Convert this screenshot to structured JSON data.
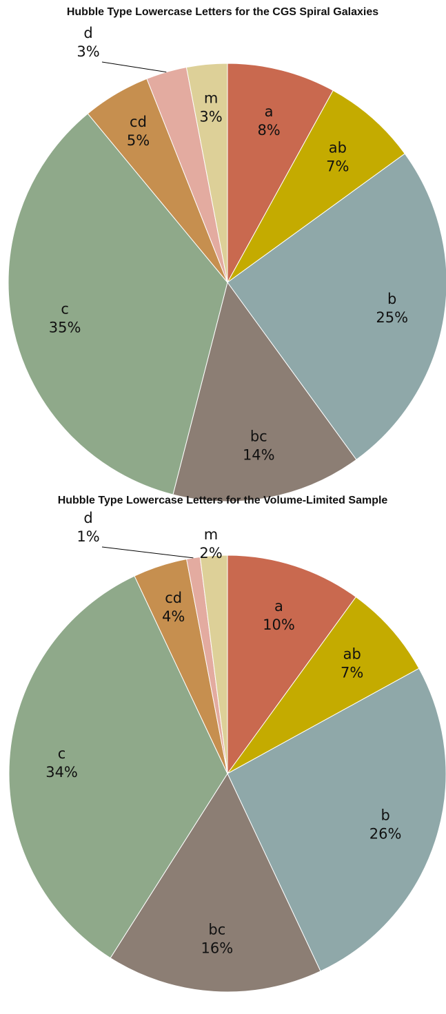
{
  "chart_data": [
    {
      "type": "pie",
      "title": "Hubble Type Lowercase Letters for the CGS Spiral Galaxies",
      "categories": [
        "a",
        "ab",
        "b",
        "bc",
        "c",
        "cd",
        "d",
        "m"
      ],
      "values": [
        8,
        7,
        25,
        14,
        35,
        5,
        3,
        3
      ],
      "value_labels": [
        "8%",
        "7%",
        "25%",
        "14%",
        "35%",
        "5%",
        "3%",
        "3%"
      ],
      "colors": [
        "#c9694f",
        "#c4ab00",
        "#8fa8a9",
        "#8c7e74",
        "#8fa98a",
        "#c68f4f",
        "#e3aba0",
        "#ddd098"
      ]
    },
    {
      "type": "pie",
      "title": "Hubble Type Lowercase Letters for the Volume-Limited Sample",
      "categories": [
        "a",
        "ab",
        "b",
        "bc",
        "c",
        "cd",
        "d",
        "m"
      ],
      "values": [
        10,
        7,
        26,
        16,
        34,
        4,
        1,
        2
      ],
      "value_labels": [
        "10%",
        "7%",
        "26%",
        "16%",
        "34%",
        "4%",
        "1%",
        "2%"
      ],
      "colors": [
        "#c9694f",
        "#c4ab00",
        "#8fa8a9",
        "#8c7e74",
        "#8fa98a",
        "#c68f4f",
        "#e3aba0",
        "#ddd098"
      ]
    }
  ]
}
